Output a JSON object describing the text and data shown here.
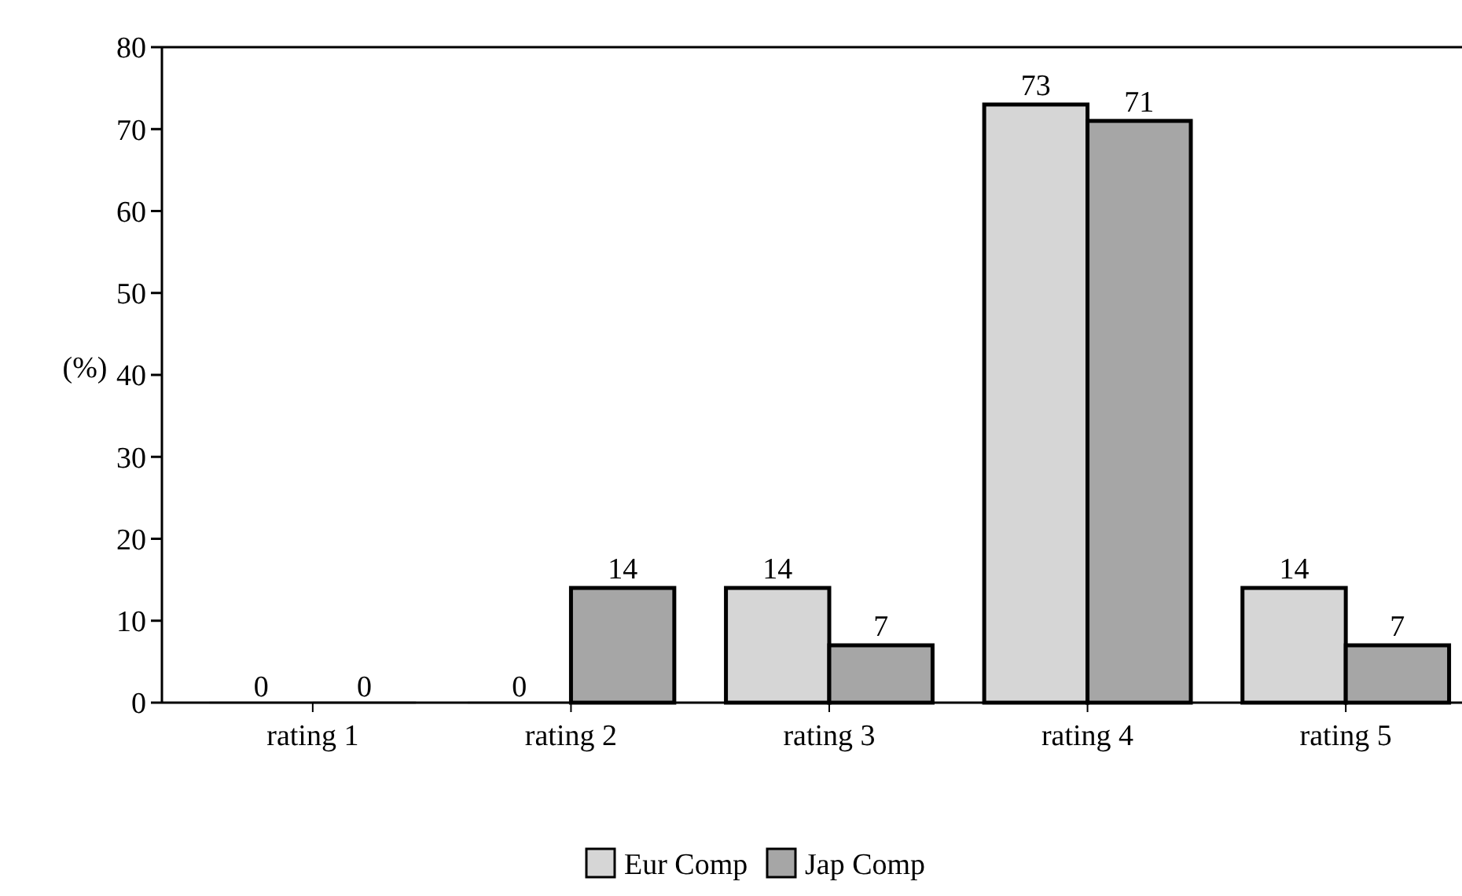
{
  "chart_data": {
    "type": "bar",
    "ylabel": "(%)",
    "categories": [
      "rating 1",
      "rating 2",
      "rating 3",
      "rating 4",
      "rating 5"
    ],
    "series": [
      {
        "name": "Eur Comp",
        "color": "#d6d6d6",
        "values": [
          0,
          0,
          14,
          73,
          14
        ]
      },
      {
        "name": "Jap Comp",
        "color": "#a6a6a6",
        "values": [
          0,
          14,
          7,
          71,
          7
        ]
      }
    ],
    "ylim": [
      0,
      80
    ],
    "yticks": [
      0,
      10,
      20,
      30,
      40,
      50,
      60,
      70,
      80
    ],
    "data_labels": true,
    "legend": "bottom",
    "grid": false
  }
}
